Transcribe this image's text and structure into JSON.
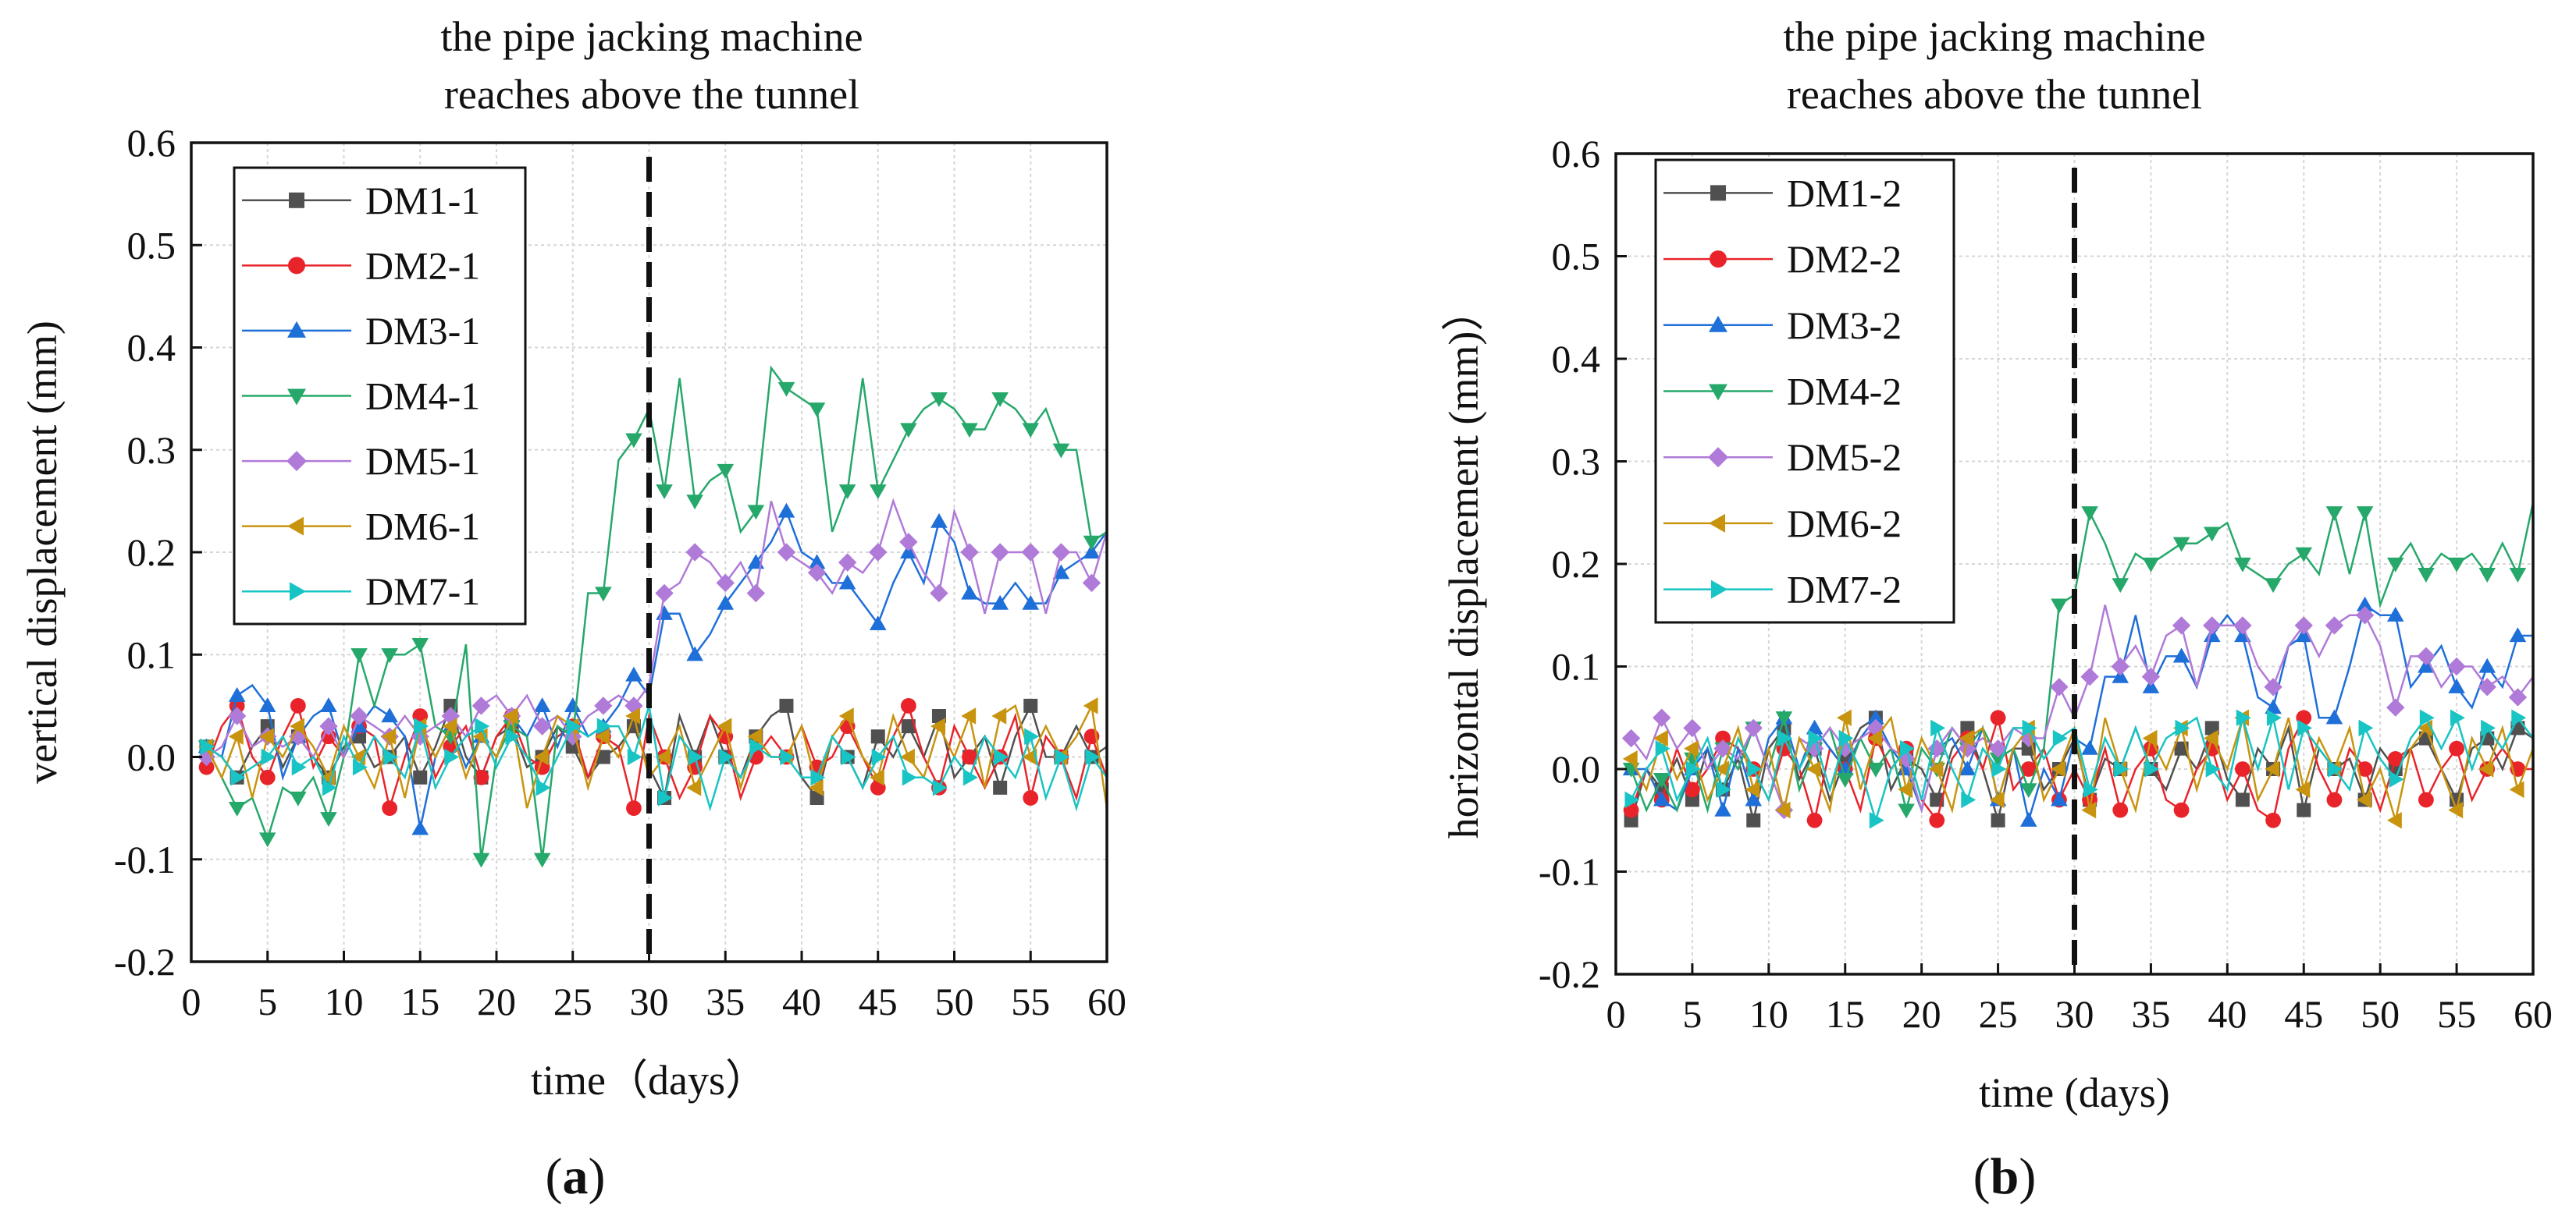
{
  "chart_data": [
    {
      "type": "line",
      "panel_label": {
        "open": "(",
        "letter": "a",
        "close": ")"
      },
      "title": [
        "the pipe jacking machine",
        "reaches above the tunnel"
      ],
      "xlabel": "time（days）",
      "ylabel": "vertical displacement (mm)",
      "xlim": [
        0,
        60
      ],
      "ylim": [
        -0.2,
        0.6
      ],
      "xticks": [
        0,
        5,
        10,
        15,
        20,
        25,
        30,
        35,
        40,
        45,
        50,
        55,
        60
      ],
      "xtick_labels": [
        "0",
        "5",
        "10",
        "15",
        "20",
        "25",
        "30",
        "35",
        "40",
        "45",
        "50",
        "55",
        "60"
      ],
      "yticks": [
        -0.2,
        -0.1,
        0.0,
        0.1,
        0.2,
        0.3,
        0.4,
        0.5,
        0.6
      ],
      "ytick_labels": [
        "-0.2",
        "-0.1",
        "0.0",
        "0.1",
        "0.2",
        "0.3",
        "0.4",
        "0.5",
        "0.6"
      ],
      "grid": true,
      "legend_position": "top-left",
      "event_line_x": 30,
      "series": [
        {
          "name": "DM1-1",
          "color": "#505050",
          "marker": "square",
          "values": [
            0.01,
            0.0,
            -0.02,
            0.01,
            0.03,
            -0.01,
            0.02,
            0.0,
            -0.02,
            0.01,
            0.02,
            -0.01,
            0.0,
            0.02,
            -0.02,
            0.01,
            0.05,
            0.0,
            -0.02,
            0.02,
            0.03,
            -0.01,
            0.0,
            0.03,
            0.01,
            -0.02,
            0.0,
            0.01,
            0.03,
            -0.01,
            -0.04,
            0.04,
            0.0,
            0.04,
            0.0,
            -0.02,
            0.02,
            0.04,
            0.05,
            -0.02,
            -0.04,
            0.02,
            0.0,
            -0.03,
            0.02,
            0.0,
            0.03,
            0.0,
            0.04,
            -0.02,
            0.0,
            0.02,
            -0.03,
            0.02,
            0.05,
            0.0,
            0.0,
            0.03,
            0.0,
            0.01
          ]
        },
        {
          "name": "DM2-1",
          "color": "#e8242a",
          "marker": "circle",
          "values": [
            -0.01,
            0.03,
            0.05,
            0.0,
            -0.02,
            0.02,
            0.05,
            -0.01,
            0.02,
            0.0,
            0.03,
            0.02,
            -0.05,
            0.0,
            0.04,
            -0.02,
            0.01,
            0.03,
            -0.02,
            0.02,
            0.04,
            0.0,
            -0.01,
            0.02,
            0.03,
            -0.02,
            0.02,
            0.01,
            -0.05,
            0.04,
            0.0,
            -0.04,
            -0.01,
            0.04,
            0.02,
            -0.04,
            0.0,
            0.02,
            0.0,
            0.03,
            -0.01,
            0.0,
            0.03,
            0.0,
            -0.03,
            0.02,
            0.05,
            0.0,
            -0.03,
            0.03,
            0.0,
            -0.03,
            0.0,
            0.04,
            -0.04,
            0.02,
            0.0,
            -0.04,
            0.02,
            -0.02
          ]
        },
        {
          "name": "DM3-1",
          "color": "#1f6fd9",
          "marker": "triangle-up",
          "values": [
            0.01,
            0.0,
            0.06,
            0.07,
            0.05,
            -0.02,
            0.02,
            0.04,
            0.05,
            0.0,
            0.03,
            0.05,
            0.04,
            0.02,
            -0.07,
            0.0,
            0.03,
            -0.01,
            0.02,
            0.0,
            0.04,
            0.02,
            0.05,
            0.01,
            0.05,
            0.02,
            0.03,
            0.05,
            0.08,
            0.06,
            0.14,
            0.14,
            0.1,
            0.12,
            0.15,
            0.17,
            0.19,
            0.21,
            0.24,
            0.2,
            0.19,
            0.17,
            0.17,
            0.15,
            0.13,
            0.17,
            0.2,
            0.17,
            0.23,
            0.21,
            0.16,
            0.15,
            0.15,
            0.17,
            0.15,
            0.15,
            0.18,
            0.19,
            0.2,
            0.22
          ]
        },
        {
          "name": "DM4-1",
          "color": "#27a86b",
          "marker": "triangle-down",
          "values": [
            0.01,
            -0.02,
            -0.05,
            -0.04,
            -0.08,
            -0.03,
            -0.04,
            -0.02,
            -0.06,
            0.0,
            0.1,
            0.05,
            0.1,
            0.1,
            0.11,
            0.03,
            0.02,
            0.11,
            -0.1,
            0.0,
            0.03,
            0.02,
            -0.1,
            0.03,
            0.02,
            0.16,
            0.16,
            0.29,
            0.31,
            0.34,
            0.26,
            0.37,
            0.25,
            0.27,
            0.28,
            0.22,
            0.24,
            0.38,
            0.36,
            0.35,
            0.34,
            0.22,
            0.26,
            0.37,
            0.26,
            0.29,
            0.32,
            0.34,
            0.35,
            0.34,
            0.32,
            0.32,
            0.35,
            0.34,
            0.32,
            0.34,
            0.3,
            0.3,
            0.21,
            0.22
          ]
        },
        {
          "name": "DM5-1",
          "color": "#b07ad8",
          "marker": "diamond",
          "values": [
            0.0,
            0.01,
            0.04,
            0.01,
            0.02,
            0.01,
            0.02,
            0.0,
            0.03,
            0.0,
            0.04,
            0.03,
            0.02,
            0.04,
            0.02,
            0.03,
            0.04,
            0.02,
            0.05,
            0.06,
            0.04,
            0.06,
            0.03,
            0.04,
            0.02,
            0.04,
            0.05,
            0.06,
            0.05,
            0.07,
            0.16,
            0.17,
            0.2,
            0.19,
            0.17,
            0.19,
            0.16,
            0.25,
            0.2,
            0.19,
            0.18,
            0.16,
            0.19,
            0.18,
            0.2,
            0.25,
            0.21,
            0.18,
            0.16,
            0.24,
            0.2,
            0.14,
            0.2,
            0.2,
            0.2,
            0.14,
            0.2,
            0.2,
            0.17,
            0.22
          ]
        },
        {
          "name": "DM6-1",
          "color": "#c8940f",
          "marker": "triangle-left",
          "values": [
            0.01,
            -0.02,
            0.02,
            -0.04,
            0.02,
            0.0,
            0.03,
            0.01,
            -0.02,
            0.03,
            0.0,
            -0.03,
            0.02,
            -0.04,
            0.03,
            0.0,
            0.03,
            -0.02,
            0.02,
            0.0,
            0.04,
            -0.05,
            0.0,
            0.04,
            0.03,
            -0.03,
            0.02,
            0.0,
            0.04,
            -0.02,
            0.0,
            0.03,
            -0.03,
            0.0,
            0.03,
            -0.03,
            0.02,
            0.0,
            0.0,
            0.03,
            -0.03,
            0.02,
            0.04,
            0.0,
            -0.02,
            0.04,
            0.0,
            -0.02,
            0.03,
            0.0,
            0.04,
            -0.03,
            0.04,
            0.05,
            0.0,
            0.03,
            0.0,
            0.02,
            0.05,
            -0.05
          ]
        },
        {
          "name": "DM7-1",
          "color": "#19c4c4",
          "marker": "triangle-right",
          "values": [
            0.01,
            0.0,
            -0.02,
            -0.01,
            0.0,
            0.02,
            -0.01,
            0.0,
            -0.03,
            0.02,
            -0.01,
            0.02,
            0.0,
            -0.02,
            0.03,
            -0.03,
            0.0,
            0.02,
            0.03,
            -0.01,
            0.02,
            0.0,
            -0.03,
            0.0,
            0.03,
            0.02,
            0.03,
            0.03,
            0.0,
            0.05,
            -0.04,
            0.02,
            0.0,
            -0.05,
            0.0,
            -0.02,
            0.01,
            0.0,
            0.0,
            -0.02,
            -0.02,
            0.02,
            0.0,
            -0.03,
            0.0,
            0.02,
            -0.02,
            -0.02,
            -0.03,
            0.0,
            -0.02,
            0.02,
            0.0,
            -0.02,
            0.02,
            -0.04,
            0.0,
            -0.05,
            0.0,
            -0.02
          ]
        }
      ]
    },
    {
      "type": "line",
      "panel_label": {
        "open": "(",
        "letter": "b",
        "close": ")"
      },
      "title": [
        "the pipe jacking machine",
        "reaches above the tunnel"
      ],
      "xlabel": "time (days)",
      "ylabel": "horizontal displacement (mm)）",
      "xlim": [
        0,
        60
      ],
      "ylim": [
        -0.2,
        0.6
      ],
      "xticks": [
        0,
        5,
        10,
        15,
        20,
        25,
        30,
        35,
        40,
        45,
        50,
        55,
        60
      ],
      "xtick_labels": [
        "0",
        "5",
        "10",
        "15",
        "20",
        "25",
        "30",
        "35",
        "40",
        "45",
        "50",
        "55",
        "60"
      ],
      "yticks": [
        -0.2,
        -0.1,
        0.0,
        0.1,
        0.2,
        0.3,
        0.4,
        0.5,
        0.6
      ],
      "ytick_labels": [
        "-0.2",
        "-0.1",
        "0.0",
        "0.1",
        "0.2",
        "0.3",
        "0.4",
        "0.5",
        "0.6"
      ],
      "grid": true,
      "legend_position": "top-left",
      "event_line_x": 30,
      "series": [
        {
          "name": "DM1-2",
          "color": "#505050",
          "marker": "square",
          "values": [
            -0.05,
            0.0,
            -0.02,
            0.01,
            -0.03,
            0.02,
            -0.02,
            0.01,
            -0.05,
            0.02,
            0.04,
            -0.01,
            0.02,
            -0.03,
            0.01,
            0.04,
            0.05,
            -0.02,
            0.01,
            0.0,
            -0.03,
            0.02,
            0.04,
            0.0,
            -0.05,
            0.02,
            0.02,
            -0.02,
            0.0,
            0.03,
            -0.03,
            0.01,
            0.0,
            0.04,
            0.0,
            -0.02,
            0.02,
            0.0,
            0.04,
            -0.01,
            -0.03,
            0.02,
            0.0,
            0.04,
            -0.04,
            0.02,
            0.0,
            0.01,
            -0.03,
            0.02,
            0.0,
            0.02,
            0.03,
            0.0,
            -0.03,
            0.02,
            0.03,
            0.0,
            0.04,
            0.03
          ]
        },
        {
          "name": "DM2-2",
          "color": "#e8242a",
          "marker": "circle",
          "values": [
            -0.04,
            0.0,
            -0.03,
            0.02,
            -0.02,
            0.0,
            0.03,
            0.02,
            0.0,
            -0.03,
            0.02,
            0.0,
            -0.05,
            0.02,
            0.0,
            -0.04,
            0.03,
            0.0,
            0.02,
            -0.03,
            -0.05,
            0.01,
            0.03,
            0.0,
            0.05,
            -0.02,
            0.0,
            0.02,
            -0.03,
            0.0,
            -0.03,
            0.02,
            -0.04,
            0.0,
            0.02,
            -0.03,
            -0.04,
            0.0,
            0.02,
            -0.03,
            0.0,
            -0.04,
            -0.05,
            0.02,
            0.05,
            0.0,
            -0.03,
            0.02,
            0.0,
            -0.04,
            0.01,
            0.02,
            -0.03,
            0.0,
            0.02,
            -0.03,
            0.0,
            0.02,
            0.0,
            0.0
          ]
        },
        {
          "name": "DM3-2",
          "color": "#1f6fd9",
          "marker": "triangle-up",
          "values": [
            0.0,
            0.0,
            -0.03,
            -0.04,
            0.0,
            0.02,
            -0.04,
            0.02,
            -0.03,
            0.03,
            0.05,
            0.0,
            0.04,
            0.02,
            0.0,
            0.03,
            0.05,
            0.02,
            0.0,
            -0.04,
            0.02,
            0.03,
            0.0,
            0.04,
            -0.03,
            0.02,
            -0.05,
            0.0,
            -0.03,
            0.03,
            0.02,
            0.09,
            0.09,
            0.15,
            0.08,
            0.11,
            0.11,
            0.08,
            0.13,
            0.15,
            0.13,
            0.07,
            0.06,
            0.12,
            0.13,
            0.05,
            0.05,
            0.1,
            0.16,
            0.15,
            0.15,
            0.08,
            0.1,
            0.12,
            0.08,
            0.06,
            0.1,
            0.08,
            0.13,
            0.13
          ]
        },
        {
          "name": "DM4-2",
          "color": "#27a86b",
          "marker": "triangle-down",
          "values": [
            0.0,
            -0.04,
            -0.01,
            -0.04,
            0.01,
            -0.04,
            0.02,
            0.0,
            0.04,
            0.0,
            0.05,
            -0.02,
            0.02,
            0.04,
            -0.01,
            0.03,
            0.0,
            0.02,
            -0.04,
            0.02,
            0.0,
            0.04,
            0.02,
            0.04,
            0.01,
            0.02,
            -0.02,
            0.02,
            0.16,
            0.17,
            0.25,
            0.22,
            0.18,
            0.21,
            0.2,
            0.21,
            0.22,
            0.22,
            0.23,
            0.24,
            0.2,
            0.19,
            0.18,
            0.2,
            0.21,
            0.19,
            0.25,
            0.19,
            0.25,
            0.16,
            0.2,
            0.22,
            0.19,
            0.21,
            0.2,
            0.21,
            0.19,
            0.22,
            0.19,
            0.26
          ]
        },
        {
          "name": "DM5-2",
          "color": "#b07ad8",
          "marker": "diamond",
          "values": [
            0.03,
            0.01,
            0.05,
            0.02,
            0.04,
            0.0,
            0.02,
            0.01,
            0.04,
            0.0,
            -0.04,
            0.03,
            0.02,
            0.04,
            0.02,
            0.03,
            0.04,
            0.02,
            0.01,
            -0.04,
            0.02,
            0.04,
            0.02,
            0.03,
            0.02,
            0.04,
            0.03,
            0.03,
            0.08,
            0.05,
            0.09,
            0.16,
            0.1,
            0.12,
            0.09,
            0.13,
            0.14,
            0.08,
            0.14,
            0.14,
            0.14,
            0.1,
            0.08,
            0.12,
            0.14,
            0.11,
            0.14,
            0.15,
            0.15,
            0.12,
            0.06,
            0.11,
            0.11,
            0.08,
            0.1,
            0.1,
            0.08,
            0.09,
            0.07,
            0.09
          ]
        },
        {
          "name": "DM6-2",
          "color": "#c8940f",
          "marker": "triangle-left",
          "values": [
            0.01,
            -0.02,
            0.03,
            -0.01,
            0.02,
            -0.03,
            0.0,
            0.04,
            -0.02,
            0.02,
            -0.04,
            0.03,
            0.0,
            -0.04,
            0.05,
            -0.02,
            0.03,
            0.05,
            -0.02,
            0.03,
            0.0,
            -0.04,
            0.03,
            0.04,
            -0.03,
            0.02,
            0.04,
            -0.03,
            0.0,
            0.04,
            -0.04,
            0.05,
            0.0,
            -0.04,
            0.03,
            0.0,
            0.04,
            -0.02,
            0.03,
            0.0,
            0.05,
            -0.03,
            0.0,
            0.05,
            -0.02,
            0.03,
            0.0,
            0.04,
            -0.03,
            0.0,
            -0.05,
            0.02,
            0.04,
            0.0,
            -0.04,
            0.03,
            0.0,
            0.04,
            -0.02,
            0.02
          ]
        },
        {
          "name": "DM7-2",
          "color": "#19c4c4",
          "marker": "triangle-right",
          "values": [
            -0.03,
            0.0,
            0.02,
            -0.03,
            0.0,
            0.03,
            -0.02,
            0.03,
            0.0,
            -0.03,
            0.03,
            0.0,
            0.03,
            -0.02,
            0.03,
            0.0,
            -0.05,
            0.0,
            0.02,
            -0.03,
            0.04,
            0.0,
            -0.03,
            0.02,
            0.0,
            0.04,
            0.04,
            0.01,
            0.03,
            0.04,
            -0.02,
            0.03,
            0.0,
            0.04,
            0.0,
            0.03,
            0.04,
            0.05,
            0.0,
            -0.02,
            0.05,
            0.0,
            0.05,
            -0.02,
            0.04,
            0.02,
            0.0,
            -0.02,
            0.04,
            0.01,
            -0.01,
            0.03,
            0.05,
            0.02,
            0.05,
            0.0,
            0.04,
            0.02,
            0.05,
            0.03
          ]
        }
      ]
    }
  ]
}
